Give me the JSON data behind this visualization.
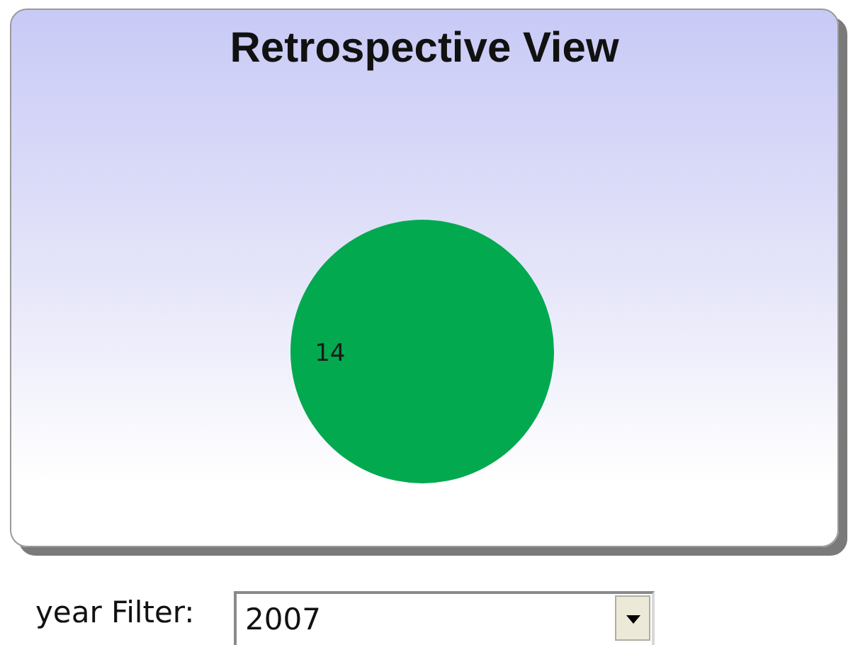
{
  "chart_data": {
    "type": "pie",
    "title": "Retrospective View",
    "categories": [
      null
    ],
    "values": [
      14
    ],
    "colors": [
      "#03a94f"
    ],
    "data_labels": true,
    "legend": false,
    "annotations": [
      "year Filter:",
      "2007"
    ]
  }
}
